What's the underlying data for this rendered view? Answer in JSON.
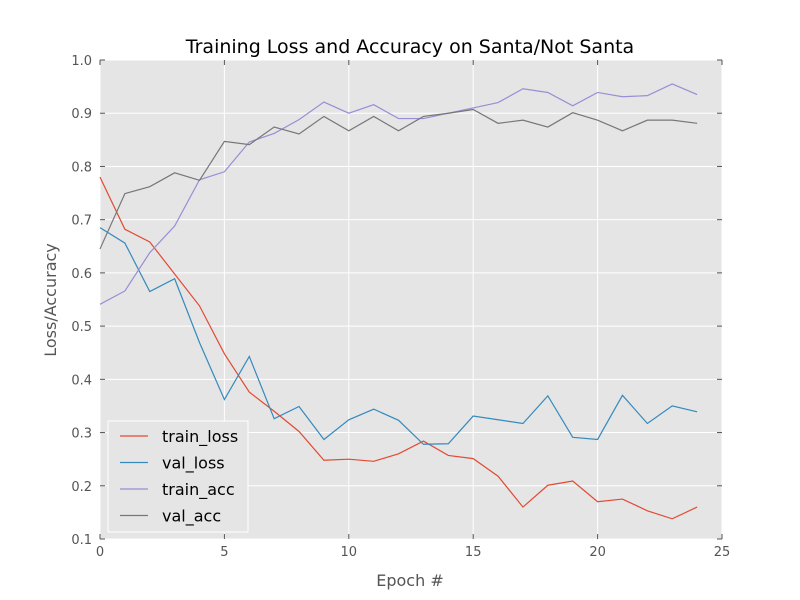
{
  "chart_data": {
    "type": "line",
    "title": "Training Loss and Accuracy on Santa/Not Santa",
    "xlabel": "Epoch #",
    "ylabel": "Loss/Accuracy",
    "xlim": [
      0,
      25
    ],
    "ylim": [
      0.1,
      1.0
    ],
    "xticks": [
      0,
      5,
      10,
      15,
      20,
      25
    ],
    "yticks": [
      0.1,
      0.2,
      0.3,
      0.4,
      0.5,
      0.6,
      0.7,
      0.8,
      0.9,
      1.0
    ],
    "xtick_labels": [
      "0",
      "5",
      "10",
      "15",
      "20",
      "25"
    ],
    "ytick_labels": [
      "0.1",
      "0.2",
      "0.3",
      "0.4",
      "0.5",
      "0.6",
      "0.7",
      "0.8",
      "0.9",
      "1.0"
    ],
    "grid": true,
    "legend_placement": "lower-left",
    "background_color": "#e5e5e5",
    "x": [
      0,
      1,
      2,
      3,
      4,
      5,
      6,
      7,
      8,
      9,
      10,
      11,
      12,
      13,
      14,
      15,
      16,
      17,
      18,
      19,
      20,
      21,
      22,
      23,
      24
    ],
    "series": [
      {
        "name": "train_loss",
        "color": "#e24a33",
        "values": [
          0.78,
          0.682,
          0.658,
          0.598,
          0.538,
          0.448,
          0.376,
          0.34,
          0.302,
          0.248,
          0.25,
          0.246,
          0.26,
          0.284,
          0.257,
          0.251,
          0.218,
          0.16,
          0.201,
          0.209,
          0.17,
          0.175,
          0.153,
          0.138,
          0.16
        ]
      },
      {
        "name": "val_loss",
        "color": "#348abd",
        "values": [
          0.685,
          0.656,
          0.565,
          0.589,
          0.469,
          0.362,
          0.443,
          0.326,
          0.349,
          0.287,
          0.324,
          0.344,
          0.323,
          0.278,
          0.279,
          0.331,
          0.324,
          0.317,
          0.369,
          0.291,
          0.287,
          0.37,
          0.317,
          0.35,
          0.339
        ]
      },
      {
        "name": "train_acc",
        "color": "#988ed5",
        "values": [
          0.541,
          0.566,
          0.638,
          0.688,
          0.775,
          0.79,
          0.846,
          0.862,
          0.888,
          0.921,
          0.9,
          0.916,
          0.89,
          0.89,
          0.9,
          0.91,
          0.92,
          0.946,
          0.939,
          0.914,
          0.939,
          0.931,
          0.933,
          0.955,
          0.935
        ]
      },
      {
        "name": "val_acc",
        "color": "#777777",
        "values": [
          0.645,
          0.749,
          0.762,
          0.788,
          0.774,
          0.847,
          0.841,
          0.874,
          0.861,
          0.894,
          0.867,
          0.894,
          0.867,
          0.894,
          0.9,
          0.907,
          0.881,
          0.887,
          0.874,
          0.901,
          0.887,
          0.867,
          0.887,
          0.887,
          0.881
        ]
      }
    ]
  }
}
